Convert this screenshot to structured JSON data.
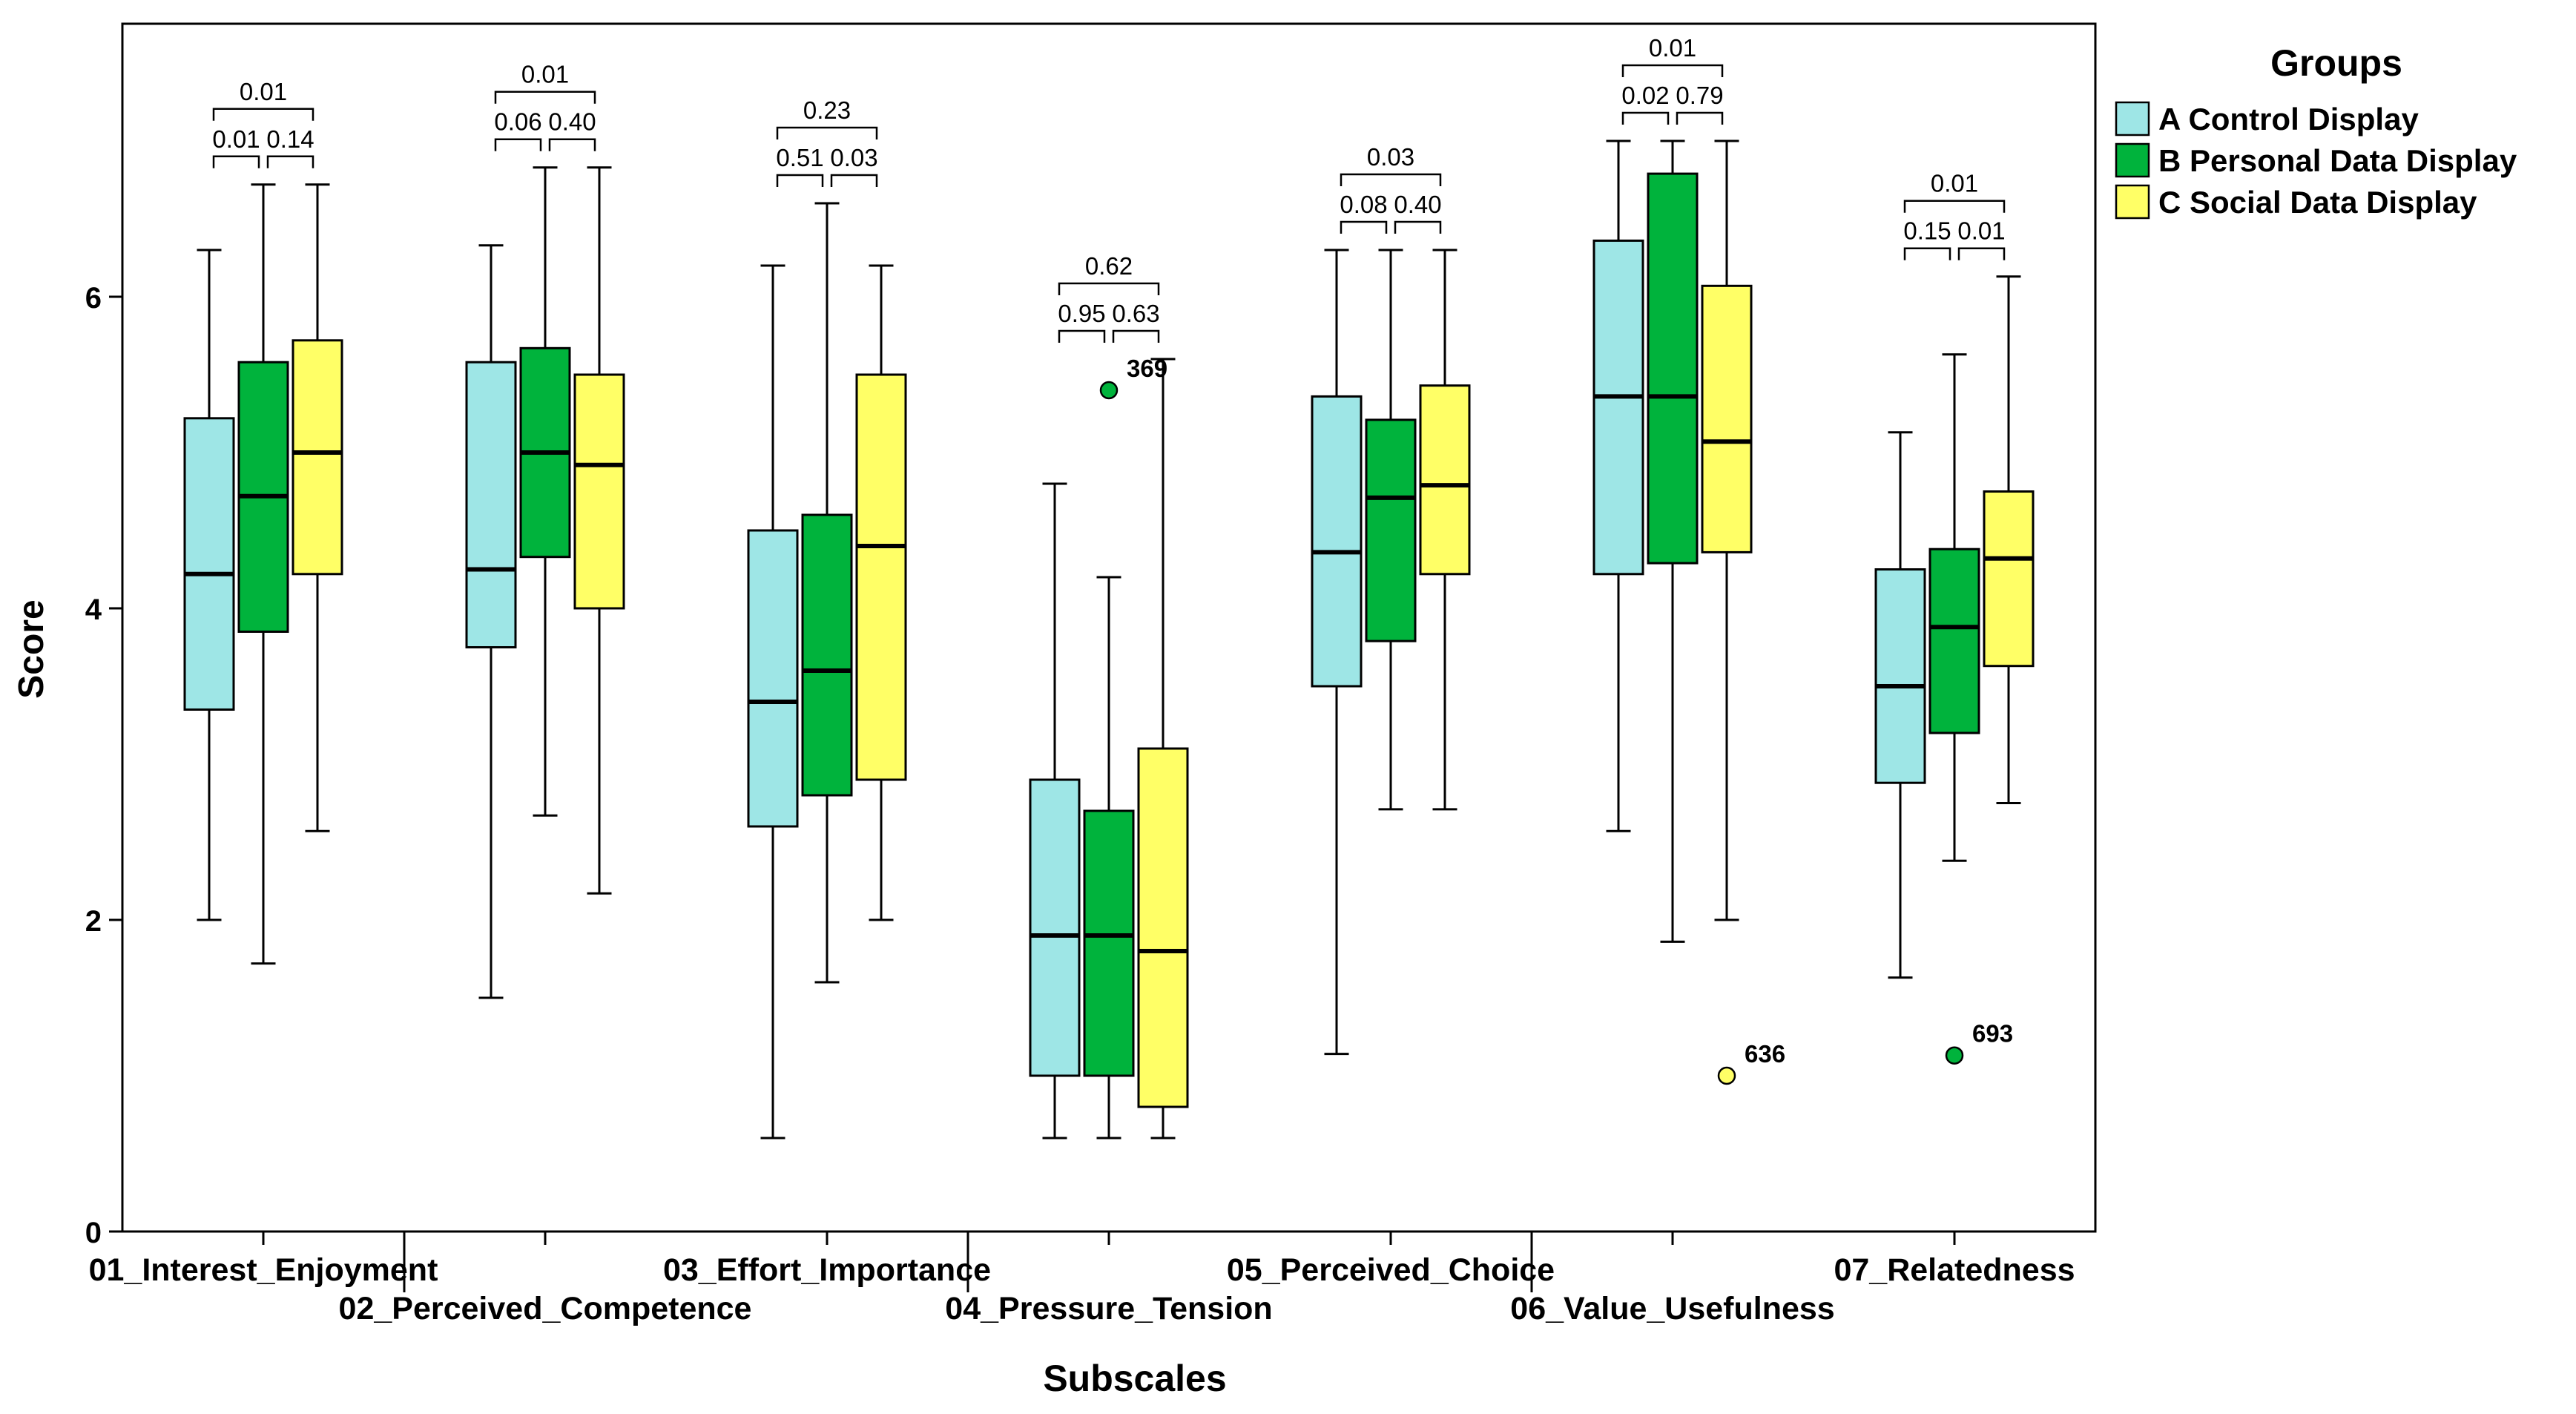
{
  "chart_data": {
    "type": "boxplot",
    "xlabel": "Subscales",
    "ylabel": "Score",
    "ylim": [
      0,
      7.8
    ],
    "yticks": [
      0,
      2,
      4,
      6
    ],
    "grid": false,
    "legend": {
      "title": "Groups",
      "position": "top-right",
      "entries": [
        "A Control Display",
        "B Personal Data Display",
        "C Social Data Display"
      ]
    },
    "colors": {
      "A": "#9ee6e6",
      "B": "#00b33c",
      "C": "#ffff66"
    },
    "categories": [
      "01_Interest_Enjoyment",
      "02_Perceived_Competence",
      "03_Effort_Importance",
      "04_Pressure_Tension",
      "05_Perceived_Choice",
      "06_Value_Usefulness",
      "07_Relatedness"
    ],
    "boxes": [
      [
        {
          "min": 2.0,
          "q1": 3.35,
          "median": 4.22,
          "q3": 5.22,
          "max": 6.3
        },
        {
          "min": 1.72,
          "q1": 3.85,
          "median": 4.72,
          "q3": 5.58,
          "max": 6.72
        },
        {
          "min": 2.57,
          "q1": 4.22,
          "median": 5.0,
          "q3": 5.72,
          "max": 6.72
        }
      ],
      [
        {
          "min": 1.5,
          "q1": 3.75,
          "median": 4.25,
          "q3": 5.58,
          "max": 6.33
        },
        {
          "min": 2.67,
          "q1": 4.33,
          "median": 5.0,
          "q3": 5.67,
          "max": 6.83
        },
        {
          "min": 2.17,
          "q1": 4.0,
          "median": 4.92,
          "q3": 5.5,
          "max": 6.83
        }
      ],
      [
        {
          "min": 0.6,
          "q1": 2.6,
          "median": 3.4,
          "q3": 4.5,
          "max": 6.2
        },
        {
          "min": 1.6,
          "q1": 2.8,
          "median": 3.6,
          "q3": 4.6,
          "max": 6.6
        },
        {
          "min": 2.0,
          "q1": 2.9,
          "median": 4.4,
          "q3": 5.5,
          "max": 6.2
        }
      ],
      [
        {
          "min": 0.6,
          "q1": 1.0,
          "median": 1.9,
          "q3": 2.9,
          "max": 4.8
        },
        {
          "min": 0.6,
          "q1": 1.0,
          "median": 1.9,
          "q3": 2.7,
          "max": 4.2
        },
        {
          "min": 0.6,
          "q1": 0.8,
          "median": 1.8,
          "q3": 3.1,
          "max": 5.6
        }
      ],
      [
        {
          "min": 1.14,
          "q1": 3.5,
          "median": 4.36,
          "q3": 5.36,
          "max": 6.3
        },
        {
          "min": 2.71,
          "q1": 3.79,
          "median": 4.71,
          "q3": 5.21,
          "max": 6.3
        },
        {
          "min": 2.71,
          "q1": 4.22,
          "median": 4.79,
          "q3": 5.43,
          "max": 6.3
        }
      ],
      [
        {
          "min": 2.57,
          "q1": 4.22,
          "median": 5.36,
          "q3": 6.36,
          "max": 7.0
        },
        {
          "min": 1.86,
          "q1": 4.29,
          "median": 5.36,
          "q3": 6.79,
          "max": 7.0
        },
        {
          "min": 2.0,
          "q1": 4.36,
          "median": 5.07,
          "q3": 6.07,
          "max": 7.0
        }
      ],
      [
        {
          "min": 1.63,
          "q1": 2.88,
          "median": 3.5,
          "q3": 4.25,
          "max": 5.13
        },
        {
          "min": 2.38,
          "q1": 3.2,
          "median": 3.88,
          "q3": 4.38,
          "max": 5.63
        },
        {
          "min": 2.75,
          "q1": 3.63,
          "median": 4.32,
          "q3": 4.75,
          "max": 6.13
        }
      ]
    ],
    "outliers": [
      {
        "category": 3,
        "group": 1,
        "value": 5.4,
        "label": "369"
      },
      {
        "category": 5,
        "group": 2,
        "value": 1.0,
        "label": "636"
      },
      {
        "category": 6,
        "group": 1,
        "value": 1.13,
        "label": "693"
      }
    ],
    "significance": [
      {
        "ab": "0.01",
        "bc": "0.14",
        "ac": "0.01"
      },
      {
        "ab": "0.06",
        "bc": "0.40",
        "ac": "0.01"
      },
      {
        "ab": "0.51",
        "bc": "0.03",
        "ac": "0.23"
      },
      {
        "ab": "0.95",
        "bc": "0.63",
        "ac": "0.62"
      },
      {
        "ab": "0.08",
        "bc": "0.40",
        "ac": "0.03"
      },
      {
        "ab": "0.02",
        "bc": "0.79",
        "ac": "0.01"
      },
      {
        "ab": "0.15",
        "bc": "0.01",
        "ac": "0.01"
      }
    ]
  }
}
